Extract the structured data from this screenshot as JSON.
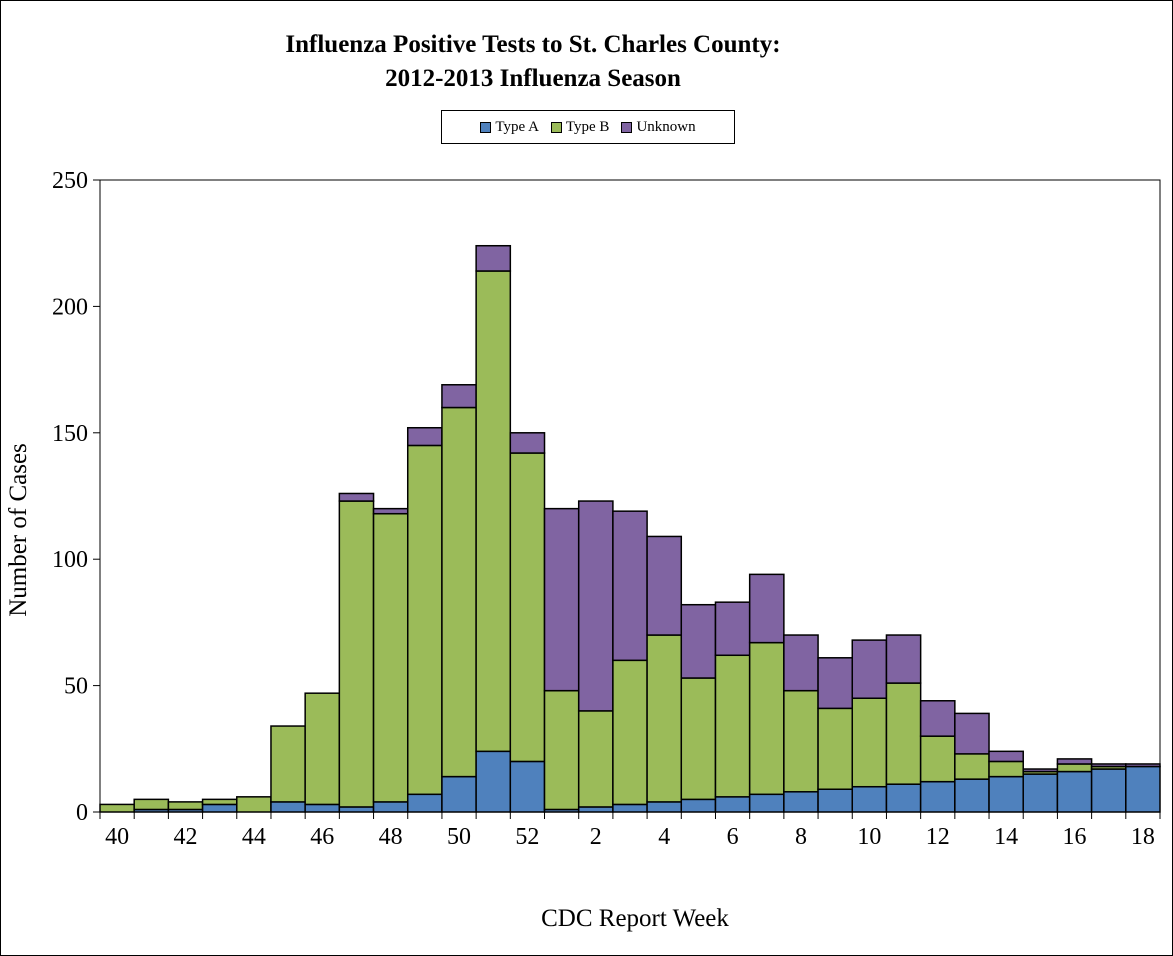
{
  "chart_data": {
    "type": "bar",
    "stacked": true,
    "title": "Influenza Positive Tests to St. Charles County:",
    "subtitle": "2012-2013 Influenza Season",
    "xlabel": "CDC Report Week",
    "ylabel": "Number of Cases",
    "ylim": [
      0,
      250
    ],
    "yticks": [
      0,
      50,
      100,
      150,
      200,
      250
    ],
    "grid": false,
    "legend_placement": "top-center",
    "categories": [
      "40",
      "41",
      "42",
      "43",
      "44",
      "45",
      "46",
      "47",
      "48",
      "49",
      "50",
      "51",
      "52",
      "1",
      "2",
      "3",
      "4",
      "5",
      "6",
      "7",
      "8",
      "9",
      "10",
      "11",
      "12",
      "13",
      "14",
      "15",
      "16",
      "17",
      "18"
    ],
    "xtick_labels": [
      "40",
      "42",
      "44",
      "46",
      "48",
      "50",
      "52",
      "2",
      "4",
      "6",
      "8",
      "10",
      "12",
      "14",
      "16",
      "18"
    ],
    "series": [
      {
        "name": "Type A",
        "color": "#4F81BD",
        "values": [
          0,
          1,
          1,
          3,
          0,
          4,
          3,
          2,
          4,
          7,
          14,
          24,
          20,
          1,
          2,
          3,
          4,
          5,
          6,
          7,
          8,
          9,
          10,
          11,
          12,
          13,
          14,
          15,
          16,
          17,
          18
        ]
      },
      {
        "name": "Type B",
        "color": "#9BBB59",
        "values": [
          3,
          4,
          3,
          2,
          6,
          30,
          44,
          121,
          114,
          138,
          146,
          190,
          122,
          47,
          38,
          57,
          66,
          48,
          56,
          60,
          40,
          32,
          35,
          40,
          18,
          10,
          6,
          1,
          3,
          1,
          0
        ]
      },
      {
        "name": "Unknown",
        "color": "#8064A2",
        "values": [
          0,
          0,
          0,
          0,
          0,
          0,
          0,
          3,
          2,
          7,
          9,
          10,
          8,
          72,
          83,
          59,
          39,
          29,
          21,
          27,
          22,
          20,
          23,
          19,
          14,
          16,
          4,
          1,
          2,
          1,
          1
        ]
      }
    ]
  }
}
